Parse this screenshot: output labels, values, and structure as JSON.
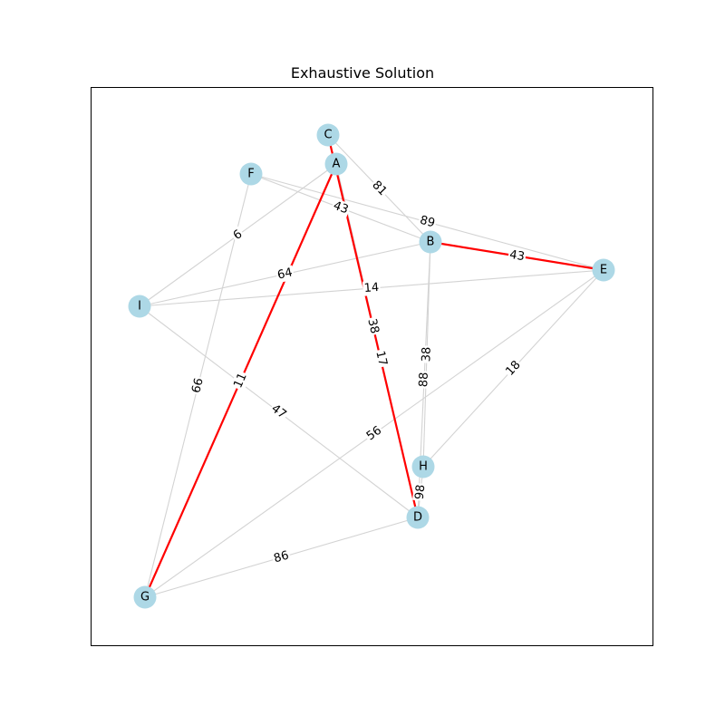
{
  "title": "Exhaustive Solution",
  "colors": {
    "node_fill": "#add8e6",
    "edge_default": "#d3d3d3",
    "edge_highlight": "#ff0000",
    "frame": "#000000"
  },
  "nodes": [
    {
      "id": "C",
      "label": "C"
    },
    {
      "id": "A",
      "label": "A"
    },
    {
      "id": "F",
      "label": "F"
    },
    {
      "id": "B",
      "label": "B"
    },
    {
      "id": "E",
      "label": "E"
    },
    {
      "id": "I",
      "label": "I"
    },
    {
      "id": "H",
      "label": "H"
    },
    {
      "id": "D",
      "label": "D"
    },
    {
      "id": "G",
      "label": "G"
    }
  ],
  "edges": [
    {
      "source": "C",
      "target": "B",
      "weight": "81",
      "highlight": false
    },
    {
      "source": "F",
      "target": "B",
      "weight": "43",
      "highlight": false
    },
    {
      "source": "F",
      "target": "E",
      "weight": "89",
      "highlight": false
    },
    {
      "source": "A",
      "target": "I",
      "weight": "6",
      "highlight": false
    },
    {
      "source": "I",
      "target": "B",
      "weight": "64",
      "highlight": false
    },
    {
      "source": "I",
      "target": "E",
      "weight": "14",
      "highlight": false
    },
    {
      "source": "I",
      "target": "D",
      "weight": "47",
      "highlight": false
    },
    {
      "source": "F",
      "target": "G",
      "weight": "66",
      "highlight": false
    },
    {
      "source": "B",
      "target": "H",
      "weight": "38",
      "highlight": false
    },
    {
      "source": "B",
      "target": "D",
      "weight": "88",
      "highlight": false
    },
    {
      "source": "E",
      "target": "H",
      "weight": "18",
      "highlight": false
    },
    {
      "source": "E",
      "target": "G",
      "weight": "56",
      "highlight": false
    },
    {
      "source": "H",
      "target": "D",
      "weight": "98",
      "highlight": false
    },
    {
      "source": "G",
      "target": "D",
      "weight": "86",
      "highlight": false
    },
    {
      "source": "C",
      "target": "D",
      "weight": "38",
      "highlight": true
    },
    {
      "source": "A",
      "target": "D",
      "weight": "17",
      "highlight": false
    },
    {
      "source": "A",
      "target": "G",
      "weight": "11",
      "highlight": true
    },
    {
      "source": "B",
      "target": "E",
      "weight": "43",
      "highlight": true
    }
  ]
}
